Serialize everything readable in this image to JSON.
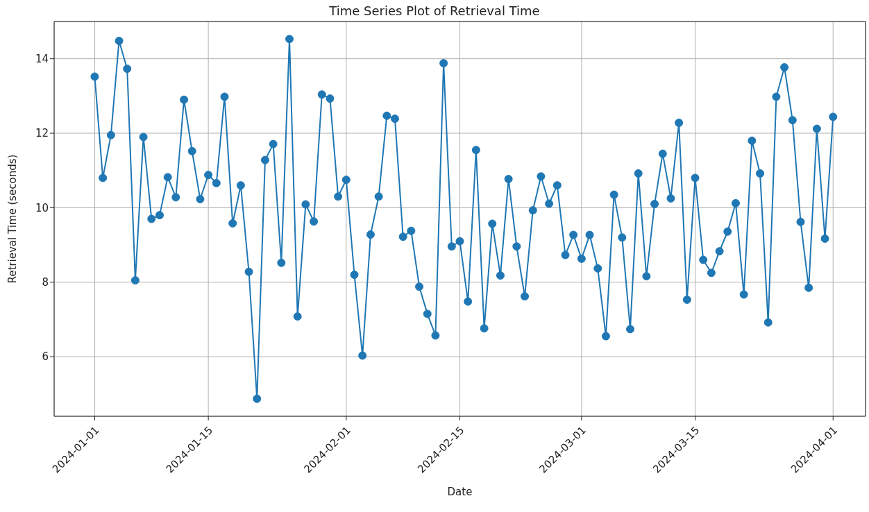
{
  "chart_data": {
    "type": "line",
    "title": "Time Series Plot of Retrieval Time",
    "xlabel": "Date",
    "ylabel": "Retrieval Time (seconds)",
    "x": [
      "2024-01-01",
      "2024-01-02",
      "2024-01-03",
      "2024-01-04",
      "2024-01-05",
      "2024-01-06",
      "2024-01-07",
      "2024-01-08",
      "2024-01-09",
      "2024-01-10",
      "2024-01-11",
      "2024-01-12",
      "2024-01-13",
      "2024-01-14",
      "2024-01-15",
      "2024-01-16",
      "2024-01-17",
      "2024-01-18",
      "2024-01-19",
      "2024-01-20",
      "2024-01-21",
      "2024-01-22",
      "2024-01-23",
      "2024-01-24",
      "2024-01-25",
      "2024-01-26",
      "2024-01-27",
      "2024-01-28",
      "2024-01-29",
      "2024-01-30",
      "2024-01-31",
      "2024-02-01",
      "2024-02-02",
      "2024-02-03",
      "2024-02-04",
      "2024-02-05",
      "2024-02-06",
      "2024-02-07",
      "2024-02-08",
      "2024-02-09",
      "2024-02-10",
      "2024-02-11",
      "2024-02-12",
      "2024-02-13",
      "2024-02-14",
      "2024-02-15",
      "2024-02-16",
      "2024-02-17",
      "2024-02-18",
      "2024-02-19",
      "2024-02-20",
      "2024-02-21",
      "2024-02-22",
      "2024-02-23",
      "2024-02-24",
      "2024-02-25",
      "2024-02-26",
      "2024-02-27",
      "2024-02-28",
      "2024-02-29",
      "2024-03-01",
      "2024-03-02",
      "2024-03-03",
      "2024-03-04",
      "2024-03-05",
      "2024-03-06",
      "2024-03-07",
      "2024-03-08",
      "2024-03-09",
      "2024-03-10",
      "2024-03-11",
      "2024-03-12",
      "2024-03-13",
      "2024-03-14",
      "2024-03-15",
      "2024-03-16",
      "2024-03-17",
      "2024-03-18",
      "2024-03-19",
      "2024-03-20",
      "2024-03-21",
      "2024-03-22",
      "2024-03-23",
      "2024-03-24",
      "2024-03-25",
      "2024-03-26",
      "2024-03-27",
      "2024-03-28",
      "2024-03-29",
      "2024-03-30",
      "2024-03-31",
      "2024-04-01"
    ],
    "series": [
      {
        "color": "#1f77b4",
        "values": [
          13.52,
          10.8,
          11.95,
          14.48,
          13.73,
          8.05,
          11.9,
          9.7,
          9.8,
          10.82,
          10.28,
          12.9,
          11.52,
          10.23,
          10.88,
          10.66,
          12.98,
          9.58,
          10.6,
          8.28,
          4.87,
          11.28,
          11.71,
          8.52,
          14.53,
          7.08,
          10.09,
          9.63,
          13.04,
          12.93,
          10.3,
          10.75,
          8.2,
          6.03,
          9.28,
          10.3,
          12.47,
          12.39,
          9.22,
          9.38,
          7.88,
          7.15,
          6.57,
          13.88,
          8.96,
          9.1,
          7.48,
          11.55,
          6.76,
          9.57,
          8.18,
          10.77,
          8.96,
          7.62,
          9.93,
          10.84,
          10.11,
          10.6,
          8.73,
          9.27,
          8.63,
          9.27,
          8.37,
          6.55,
          10.35,
          9.2,
          6.74,
          10.92,
          8.16,
          10.1,
          11.45,
          10.25,
          12.28,
          7.53,
          10.8,
          8.6,
          8.25,
          8.83,
          9.36,
          10.12,
          7.67,
          11.8,
          10.92,
          6.92,
          12.98,
          13.77,
          12.35,
          9.62,
          7.85,
          12.12,
          9.17,
          12.44
        ]
      }
    ],
    "xlim": [
      "2023-12-27",
      "2024-04-05"
    ],
    "xticks": [
      "2024-01-01",
      "2024-01-15",
      "2024-02-01",
      "2024-02-15",
      "2024-03-01",
      "2024-03-15",
      "2024-04-01"
    ],
    "ylim": [
      4.4,
      15.0
    ],
    "yticks": [
      6,
      8,
      10,
      12,
      14
    ],
    "grid": true,
    "marker": "circle",
    "line_style": "solid",
    "legend": false
  }
}
